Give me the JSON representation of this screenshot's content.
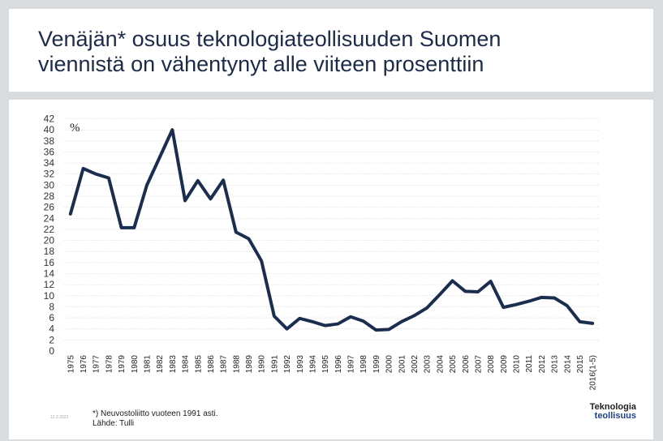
{
  "title_lines": [
    "Venäjän* osuus teknologiateollisuuden Suomen",
    "viennistä on vähentynyt alle viiteen prosenttiin"
  ],
  "footnote_lines": [
    "*) Neuvostoliitto vuoteen 1991 asti.",
    "Lähde: Tulli"
  ],
  "date": "12.2.2022",
  "logo": {
    "line1": "Teknologia",
    "line2": "teollisuus"
  },
  "colors": {
    "line": "#1c2e4f",
    "title": "#1c2b4a",
    "grid": "#d6d6d6",
    "logo_blue": "#1f3f8f"
  },
  "chart_data": {
    "type": "line",
    "title": "",
    "ylabel": "%",
    "xlabel": "",
    "ylim": [
      0,
      42
    ],
    "yticks": [
      0,
      2,
      4,
      6,
      8,
      10,
      12,
      14,
      16,
      18,
      20,
      22,
      24,
      26,
      28,
      30,
      32,
      34,
      36,
      38,
      40,
      42
    ],
    "categories": [
      "1975",
      "1976",
      "1977",
      "1978",
      "1979",
      "1980",
      "1981",
      "1982",
      "1983",
      "1984",
      "1985",
      "1986",
      "1987",
      "1988",
      "1989",
      "1990",
      "1991",
      "1992",
      "1993",
      "1994",
      "1995",
      "1996",
      "1997",
      "1998",
      "1999",
      "2000",
      "2001",
      "2002",
      "2003",
      "2004",
      "2005",
      "2006",
      "2007",
      "2008",
      "2009",
      "2010",
      "2011",
      "2012",
      "2013",
      "2014",
      "2015",
      "2016(1-5)"
    ],
    "series": [
      {
        "name": "Venäjän osuus",
        "values": [
          24.8,
          33.0,
          32.0,
          31.3,
          22.3,
          22.3,
          30.0,
          35.0,
          40.0,
          27.2,
          30.8,
          27.5,
          30.9,
          21.5,
          20.3,
          16.3,
          6.3,
          4.0,
          5.9,
          5.3,
          4.6,
          4.9,
          6.2,
          5.4,
          3.8,
          3.9,
          5.3,
          6.4,
          7.8,
          10.2,
          12.7,
          10.8,
          10.7,
          12.6,
          7.9,
          8.4,
          9.0,
          9.7,
          9.6,
          8.2,
          5.3,
          5.0
        ]
      }
    ]
  }
}
